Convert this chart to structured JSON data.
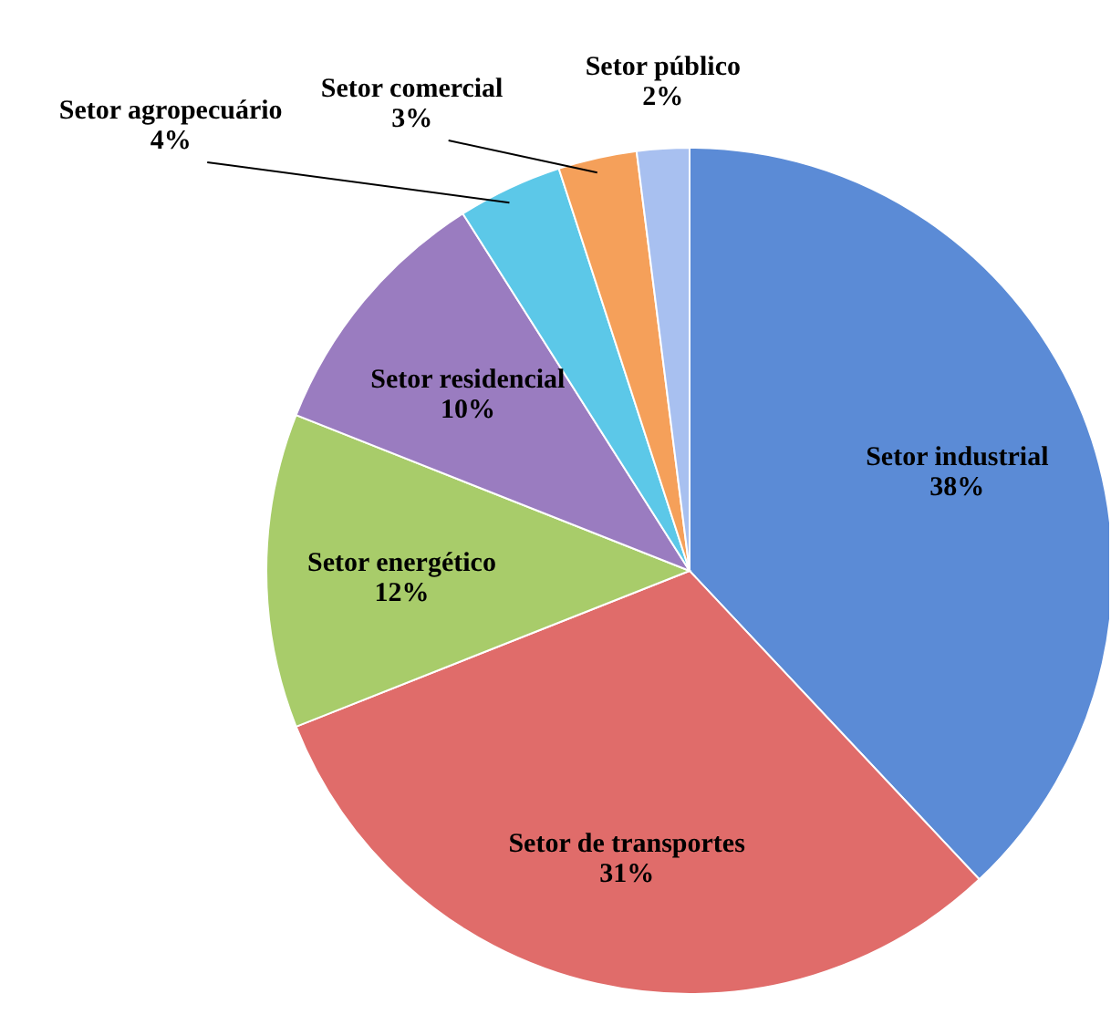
{
  "chart_data": {
    "type": "pie",
    "categories": [
      "Setor industrial",
      "Setor de transportes",
      "Setor energético",
      "Setor residencial",
      "Setor agropecuário",
      "Setor comercial",
      "Setor público"
    ],
    "values": [
      38,
      31,
      12,
      10,
      4,
      3,
      2
    ],
    "value_labels": [
      "38%",
      "31%",
      "12%",
      "10%",
      "4%",
      "3%",
      "2%"
    ],
    "colors": [
      "#5b8bd6",
      "#e06c6a",
      "#a8cc6a",
      "#9a7cc0",
      "#5cc8e8",
      "#f5a05a",
      "#a8c0f0"
    ]
  }
}
